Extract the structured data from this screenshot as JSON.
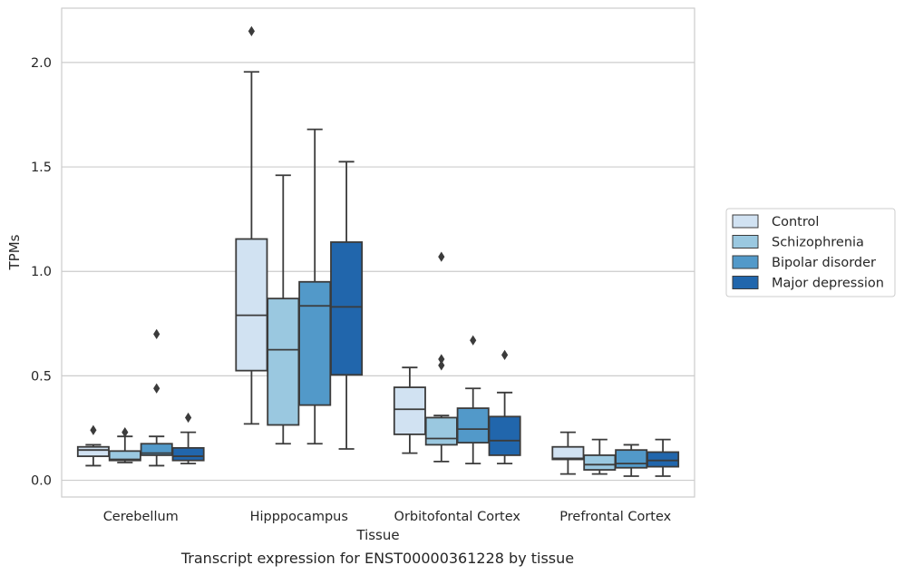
{
  "chart_data": {
    "type": "boxplot",
    "xlabel": "Tissue",
    "ylabel": "TPMs",
    "ylim": [
      -0.08,
      2.26
    ],
    "yticks": [
      "0.0",
      "0.5",
      "1.0",
      "1.5",
      "2.0"
    ],
    "ytick_values": [
      0.0,
      0.5,
      1.0,
      1.5,
      2.0
    ],
    "grid": "horizontal",
    "legend_placement": "outside-right",
    "categories": [
      "Cerebellum",
      "Hipppocampus",
      "Orbitofontal Cortex",
      "Prefrontal Cortex"
    ],
    "series": [
      {
        "name": "Control",
        "color": "#d1e2f2",
        "boxes": [
          {
            "whislo": 0.07,
            "q1": 0.115,
            "med": 0.145,
            "q3": 0.16,
            "whishi": 0.17,
            "fliers": [
              0.24
            ]
          },
          {
            "whislo": 0.27,
            "q1": 0.525,
            "med": 0.79,
            "q3": 1.155,
            "whishi": 1.955,
            "fliers": [
              2.15
            ]
          },
          {
            "whislo": 0.13,
            "q1": 0.22,
            "med": 0.34,
            "q3": 0.445,
            "whishi": 0.54,
            "fliers": []
          },
          {
            "whislo": 0.03,
            "q1": 0.1,
            "med": 0.105,
            "q3": 0.16,
            "whishi": 0.23,
            "fliers": []
          }
        ]
      },
      {
        "name": "Schizophrenia",
        "color": "#9ac8e0",
        "boxes": [
          {
            "whislo": 0.085,
            "q1": 0.095,
            "med": 0.1,
            "q3": 0.14,
            "whishi": 0.21,
            "fliers": [
              0.23
            ]
          },
          {
            "whislo": 0.175,
            "q1": 0.265,
            "med": 0.625,
            "q3": 0.87,
            "whishi": 1.46,
            "fliers": []
          },
          {
            "whislo": 0.09,
            "q1": 0.17,
            "med": 0.2,
            "q3": 0.3,
            "whishi": 0.31,
            "fliers": [
              1.07,
              0.58,
              0.55
            ]
          },
          {
            "whislo": 0.03,
            "q1": 0.05,
            "med": 0.075,
            "q3": 0.12,
            "whishi": 0.195,
            "fliers": []
          }
        ]
      },
      {
        "name": "Bipolar disorder",
        "color": "#5299c9",
        "boxes": [
          {
            "whislo": 0.07,
            "q1": 0.12,
            "med": 0.13,
            "q3": 0.175,
            "whishi": 0.21,
            "fliers": [
              0.7,
              0.44
            ]
          },
          {
            "whislo": 0.175,
            "q1": 0.36,
            "med": 0.835,
            "q3": 0.95,
            "whishi": 1.68,
            "fliers": []
          },
          {
            "whislo": 0.08,
            "q1": 0.18,
            "med": 0.245,
            "q3": 0.345,
            "whishi": 0.44,
            "fliers": [
              0.67
            ]
          },
          {
            "whislo": 0.02,
            "q1": 0.06,
            "med": 0.08,
            "q3": 0.145,
            "whishi": 0.17,
            "fliers": []
          }
        ]
      },
      {
        "name": "Major depression",
        "color": "#2166ac",
        "boxes": [
          {
            "whislo": 0.08,
            "q1": 0.095,
            "med": 0.115,
            "q3": 0.155,
            "whishi": 0.23,
            "fliers": [
              0.3
            ]
          },
          {
            "whislo": 0.15,
            "q1": 0.505,
            "med": 0.83,
            "q3": 1.14,
            "whishi": 1.525,
            "fliers": []
          },
          {
            "whislo": 0.08,
            "q1": 0.12,
            "med": 0.19,
            "q3": 0.305,
            "whishi": 0.42,
            "fliers": [
              0.6
            ]
          },
          {
            "whislo": 0.02,
            "q1": 0.065,
            "med": 0.095,
            "q3": 0.135,
            "whishi": 0.195,
            "fliers": []
          }
        ]
      }
    ]
  },
  "caption": "Transcript expression for ENST00000361228 by tissue"
}
